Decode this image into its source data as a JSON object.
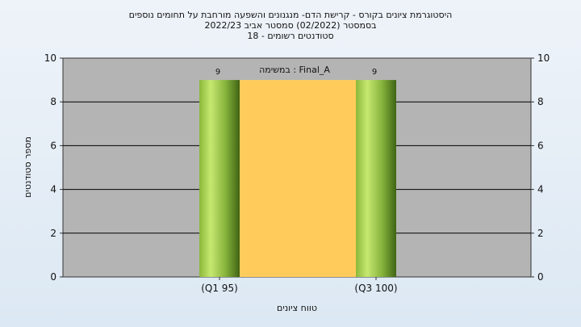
{
  "chart_data": {
    "type": "bar",
    "title_lines": [
      "היסטוגרמת ציונים בקורס - קרישת הדם- מנגנונים והשפעה מורחבת על תחומים נוספים",
      "בסמסטר  (02/2022)  סמסטר אביב 2022/23",
      "סטודנטים רשומים - 18"
    ],
    "xlabel": "טווח ציונים",
    "ylabel": "מספר סטודנטים",
    "ylim": [
      0,
      10
    ],
    "yticks": [
      0,
      2,
      4,
      6,
      8,
      10
    ],
    "grid": true,
    "annotation": "במשימה : Final_A",
    "categories": [
      "(Q1 95)",
      "(Q3 100)"
    ],
    "values": [
      9,
      9
    ],
    "data_labels": [
      "9",
      "9"
    ],
    "band": {
      "from_category": 0,
      "to_category": 1,
      "value": 9
    },
    "colors": {
      "plot_bg": "#b4b4b4",
      "bar_light": "#b5dc5a",
      "bar_dark": "#4f7a1c",
      "band": "#ffcc5c"
    }
  }
}
